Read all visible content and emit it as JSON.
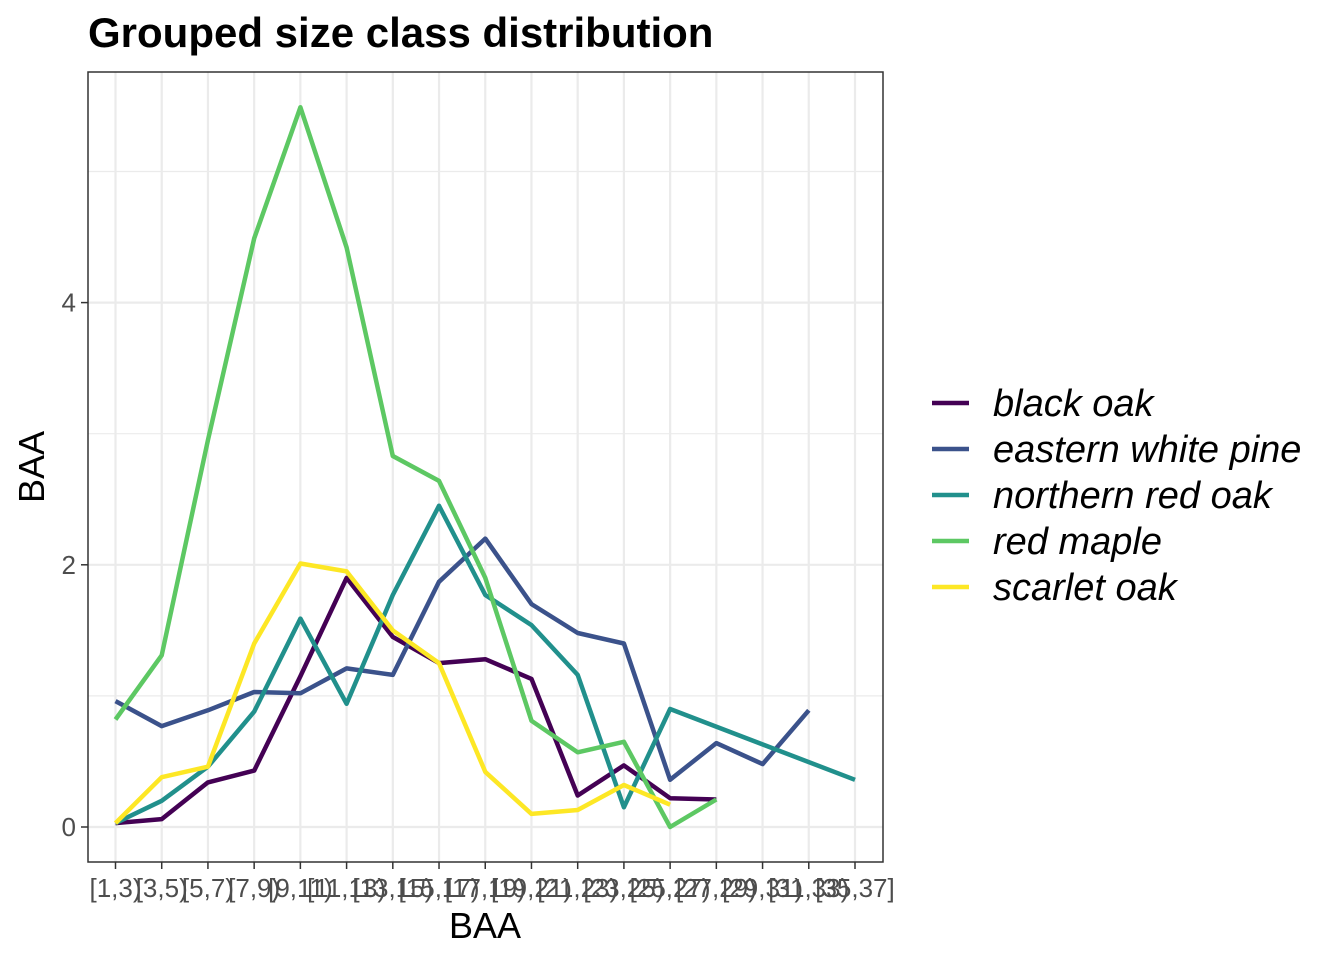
{
  "chart_data": {
    "type": "line",
    "title": "Grouped size class distribution",
    "xlabel": "BAA",
    "ylabel": "BAA",
    "categories": [
      "[1,3)",
      "[3,5)",
      "[5,7)",
      "[7,9)",
      "[9,11)",
      "[11,13)",
      "[13,15)",
      "[15,17)",
      "[17,19)",
      "[19,21)",
      "[21,23)",
      "[23,25)",
      "[25,27)",
      "[27,29)",
      "[29,31)",
      "[31,33)",
      "[35,37]"
    ],
    "ylim": [
      -0.27,
      5.8
    ],
    "y_ticks": [
      0,
      2,
      4
    ],
    "grid": true,
    "legend_position": "right",
    "series": [
      {
        "name": "black oak",
        "color": "#440154",
        "values": [
          0.03,
          0.06,
          0.34,
          0.43,
          1.15,
          1.9,
          1.45,
          1.25,
          1.28,
          1.13,
          0.24,
          0.47,
          0.22,
          0.21,
          null,
          null,
          null
        ]
      },
      {
        "name": "eastern white pine",
        "color": "#3B528B",
        "values": [
          0.96,
          0.77,
          0.89,
          1.03,
          1.02,
          1.21,
          1.16,
          1.87,
          2.2,
          1.7,
          1.48,
          1.4,
          0.36,
          0.64,
          0.48,
          0.89,
          null
        ]
      },
      {
        "name": "northern red oak",
        "color": "#21908C",
        "values": [
          0.03,
          0.2,
          0.46,
          0.88,
          1.59,
          0.94,
          1.77,
          2.45,
          1.77,
          1.54,
          1.16,
          0.15,
          0.9,
          null,
          null,
          null,
          0.36
        ]
      },
      {
        "name": "red maple",
        "color": "#5DC863",
        "values": [
          0.82,
          1.31,
          2.95,
          4.49,
          5.49,
          4.42,
          2.83,
          2.64,
          1.9,
          0.81,
          0.57,
          0.65,
          0.0,
          0.21,
          null,
          null,
          null
        ]
      },
      {
        "name": "scarlet oak",
        "color": "#FDE725",
        "values": [
          0.03,
          0.38,
          0.46,
          1.4,
          2.01,
          1.95,
          1.5,
          1.25,
          0.42,
          0.1,
          0.13,
          0.32,
          0.17,
          null,
          null,
          null,
          null
        ]
      }
    ]
  }
}
